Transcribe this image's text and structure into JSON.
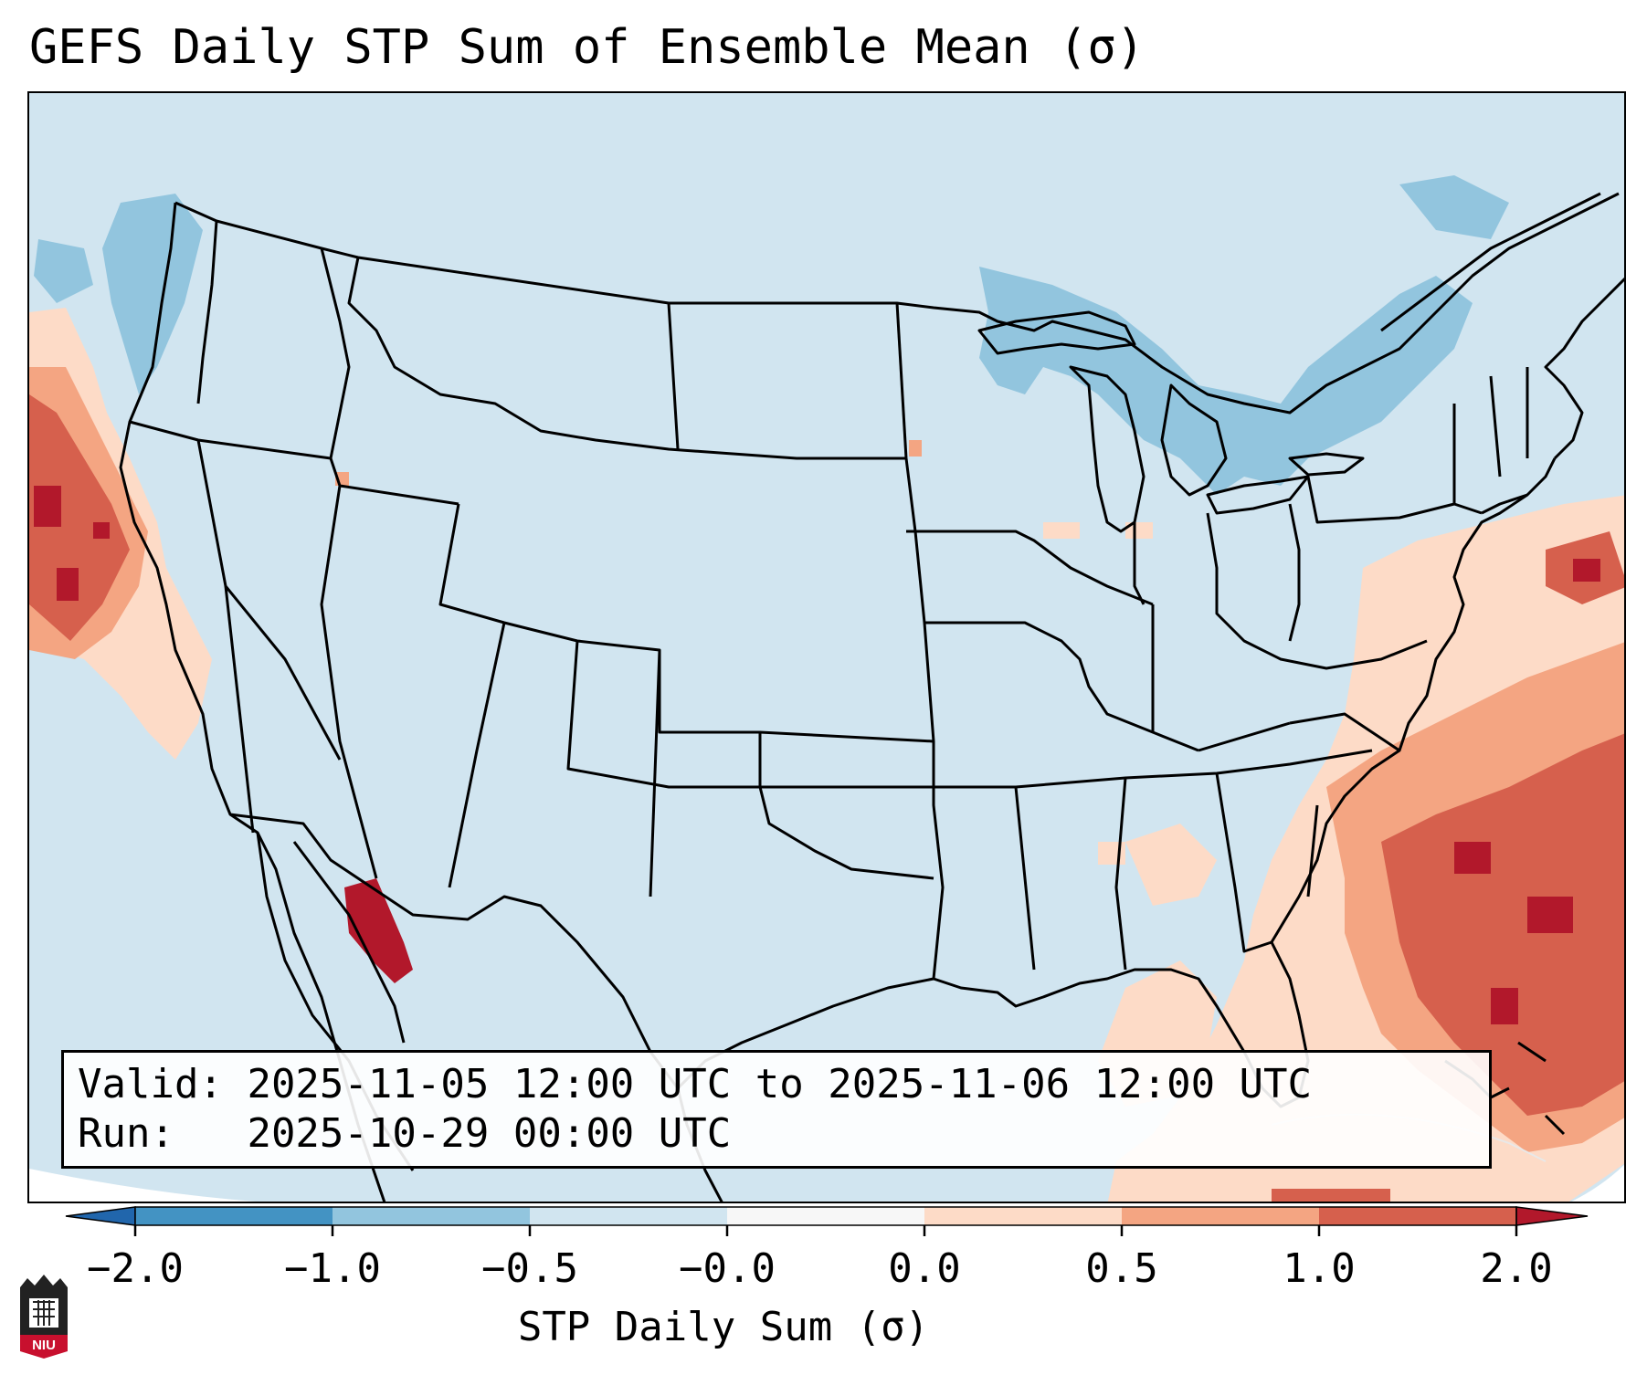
{
  "title": "GEFS Daily STP Sum of Ensemble Mean (σ)",
  "info": {
    "valid_label": "Valid:",
    "valid_value": "2025-11-05 12:00 UTC to 2025-11-06 12:00 UTC",
    "run_label": "Run:",
    "run_value": "2025-10-29 00:00 UTC"
  },
  "colorbar": {
    "label": "STP Daily Sum (σ)",
    "ticks": [
      "−2.0",
      "−1.0",
      "−0.5",
      "−0.0",
      "0.0",
      "0.5",
      "1.0",
      "2.0"
    ],
    "bins": [
      {
        "range": "< -2.0",
        "color": "#2166ac"
      },
      {
        "range": "-2.0 to -1.0",
        "color": "#4393c3"
      },
      {
        "range": "-1.0 to -0.5",
        "color": "#92c5de"
      },
      {
        "range": "-0.5 to -0.0",
        "color": "#d1e5f0"
      },
      {
        "range": "-0.0 to 0.0",
        "color": "#f7f7f7"
      },
      {
        "range": "0.0 to 0.5",
        "color": "#fddbc7"
      },
      {
        "range": "0.5 to 1.0",
        "color": "#f4a582"
      },
      {
        "range": "1.0 to 2.0",
        "color": "#d6604d"
      },
      {
        "range": "> 2.0",
        "color": "#b2182b"
      }
    ]
  },
  "logo": {
    "text": "NIU",
    "icon": "niu-logo-icon"
  }
}
